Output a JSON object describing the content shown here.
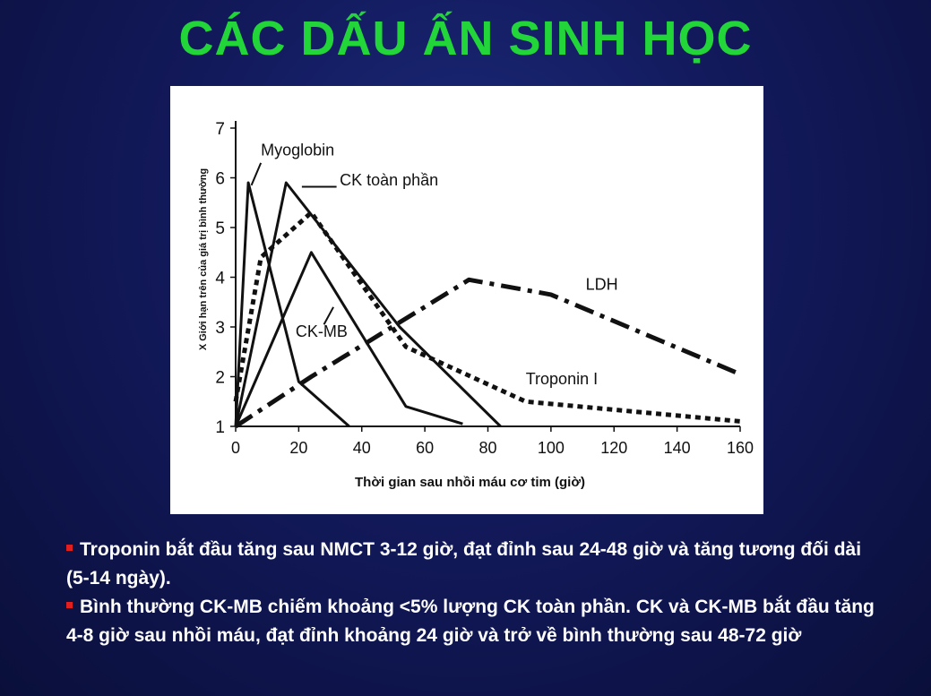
{
  "title": "CÁC DẤU ẤN SINH HỌC",
  "colors": {
    "title": "#22d63a",
    "bullet": "#e02020",
    "text": "#ffffff"
  },
  "bullets": [
    "Troponin bắt đầu tăng sau NMCT 3-12 giờ, đạt đỉnh sau 24-48 giờ và tăng tương đối dài (5-14 ngày).",
    "Bình thường CK-MB chiếm khoảng <5% lượng CK toàn phần. CK và CK-MB bắt đầu tăng 4-8 giờ sau nhồi máu, đạt đỉnh khoảng 24 giờ và trở về bình thường sau 48-72 giờ"
  ],
  "chart_data": {
    "type": "line",
    "title": "",
    "xlabel": "Thời gian sau nhồi máu cơ tim (giờ)",
    "ylabel": "X Giới hạn trên của giá trị bình thường",
    "xlim": [
      0,
      160
    ],
    "ylim": [
      1,
      7
    ],
    "xticks": [
      "0",
      "20",
      "40",
      "60",
      "80",
      "100",
      "120",
      "140",
      "160"
    ],
    "yticks": [
      "1",
      "2",
      "3",
      "4",
      "5",
      "6",
      "7"
    ],
    "series": [
      {
        "name": "Myoglobin",
        "style": "solid",
        "x": [
          0,
          4,
          20,
          36
        ],
        "y": [
          1,
          5.9,
          1.9,
          1
        ]
      },
      {
        "name": "CK toàn phần",
        "style": "solid",
        "x": [
          0,
          16,
          52,
          84
        ],
        "y": [
          1,
          5.9,
          3.0,
          1
        ]
      },
      {
        "name": "CK-MB",
        "style": "solid",
        "x": [
          0,
          24,
          54,
          72
        ],
        "y": [
          1,
          4.5,
          1.4,
          1.05
        ]
      },
      {
        "name": "Troponin I",
        "style": "dotted",
        "x": [
          0,
          8,
          24,
          54,
          92,
          160
        ],
        "y": [
          1.5,
          4.4,
          5.3,
          2.6,
          1.5,
          1.1
        ]
      },
      {
        "name": "LDH",
        "style": "dashdot",
        "x": [
          0,
          24,
          74,
          100,
          160
        ],
        "y": [
          1,
          2.0,
          3.95,
          3.65,
          2.05
        ]
      }
    ],
    "annotations": [
      "Myoglobin",
      "CK toàn phần",
      "CK-MB",
      "Troponin I",
      "LDH"
    ]
  }
}
